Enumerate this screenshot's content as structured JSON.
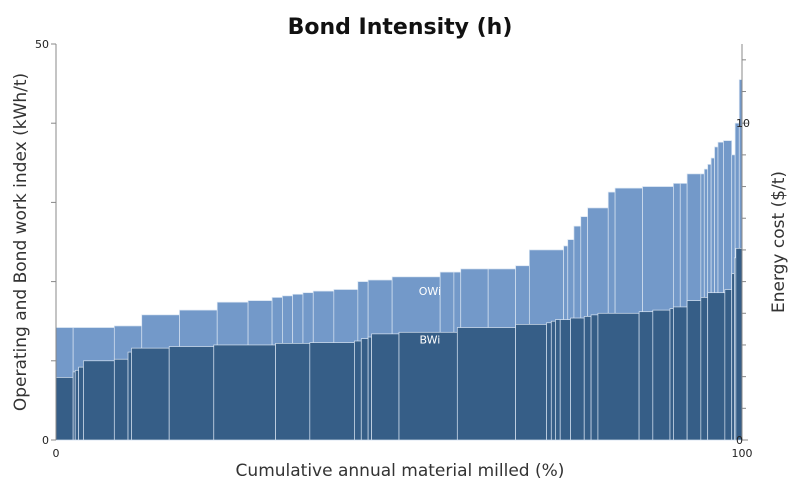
{
  "chart_data": {
    "type": "area",
    "title": "Bond Intensity (h)",
    "xlabel": "Cumulative annual material milled (%)",
    "ylabel": "Operating and Bond work index (kWh/t)",
    "y2label": "Energy cost ($/t)",
    "xlim": [
      0,
      100
    ],
    "ylim": [
      0,
      50
    ],
    "y2lim": [
      0,
      12.5
    ],
    "x_tick_labels": [
      "0",
      "100"
    ],
    "y_tick_labels": [
      "0",
      "50"
    ],
    "y2_tick_labels": [
      "0",
      "10"
    ],
    "x_ticks": [
      0,
      100
    ],
    "y_ticks": [
      0,
      50
    ],
    "y_minor_ticks": [
      10,
      20,
      30,
      40
    ],
    "y2_ticks": [
      0,
      10
    ],
    "y2_minor_ticks": [
      1,
      2,
      3,
      4,
      5,
      6,
      7,
      8,
      9,
      11,
      12
    ],
    "series": [
      {
        "name": "OWi",
        "label": "OWi",
        "color": "#7399c9",
        "label_at": [
          54.5,
          18.3
        ],
        "steps": [
          [
            0,
            14.2
          ],
          [
            2.5,
            14.2
          ],
          [
            8.5,
            14.4
          ],
          [
            12.5,
            15.8
          ],
          [
            18,
            16.4
          ],
          [
            23.5,
            17.4
          ],
          [
            28,
            17.6
          ],
          [
            31.5,
            18
          ],
          [
            33,
            18.2
          ],
          [
            34.5,
            18.4
          ],
          [
            36,
            18.6
          ],
          [
            37.5,
            18.8
          ],
          [
            40.5,
            19
          ],
          [
            44,
            20
          ],
          [
            45.5,
            20.2
          ],
          [
            49,
            20.6
          ],
          [
            56,
            21.2
          ],
          [
            58,
            21.2
          ],
          [
            59,
            21.6
          ],
          [
            63,
            21.6
          ],
          [
            67,
            22
          ],
          [
            69,
            24
          ],
          [
            74,
            24.5
          ],
          [
            74.6,
            25.3
          ],
          [
            75.5,
            27
          ],
          [
            76.5,
            28.2
          ],
          [
            77.5,
            29.3
          ],
          [
            80.5,
            31.3
          ],
          [
            81.5,
            31.8
          ],
          [
            85.5,
            32
          ],
          [
            90,
            32.4
          ],
          [
            91,
            32.4
          ],
          [
            92,
            33.6
          ],
          [
            94,
            33.6
          ],
          [
            94.5,
            34.2
          ],
          [
            95,
            34.8
          ],
          [
            95.5,
            35.6
          ],
          [
            96,
            37
          ],
          [
            96.5,
            37.6
          ],
          [
            97.3,
            37.8
          ],
          [
            98.5,
            36
          ],
          [
            99,
            40
          ],
          [
            99.6,
            45.5
          ],
          [
            100,
            45.5
          ]
        ]
      },
      {
        "name": "BWi",
        "label": "BWi",
        "color": "#365e87",
        "label_at": [
          54.5,
          12.2
        ],
        "steps": [
          [
            0,
            7.9
          ],
          [
            2.5,
            8.6
          ],
          [
            2.8,
            8.8
          ],
          [
            3.3,
            9.2
          ],
          [
            4,
            10
          ],
          [
            8.5,
            10.2
          ],
          [
            10.5,
            11.1
          ],
          [
            11,
            11.6
          ],
          [
            16.5,
            11.8
          ],
          [
            23,
            12
          ],
          [
            32,
            12.2
          ],
          [
            37,
            12.3
          ],
          [
            43.5,
            12.5
          ],
          [
            44.5,
            12.8
          ],
          [
            45.5,
            13
          ],
          [
            46,
            13.4
          ],
          [
            50,
            13.6
          ],
          [
            58.5,
            14.2
          ],
          [
            67,
            14.6
          ],
          [
            71.5,
            14.8
          ],
          [
            72.2,
            15
          ],
          [
            72.8,
            15.2
          ],
          [
            73.5,
            15.2
          ],
          [
            75,
            15.4
          ],
          [
            77,
            15.6
          ],
          [
            78,
            15.8
          ],
          [
            79,
            16
          ],
          [
            85,
            16.2
          ],
          [
            87,
            16.4
          ],
          [
            89.5,
            16.6
          ],
          [
            90,
            16.8
          ],
          [
            92,
            17.6
          ],
          [
            94,
            18
          ],
          [
            95,
            18.6
          ],
          [
            97.5,
            19
          ],
          [
            98.5,
            21
          ],
          [
            98.9,
            23
          ],
          [
            99.1,
            24.2
          ],
          [
            100,
            24.2
          ]
        ]
      }
    ]
  }
}
